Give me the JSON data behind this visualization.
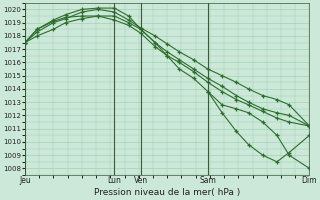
{
  "bg_color": "#cce8d8",
  "grid_color": "#99ccb0",
  "line_color": "#2d6e2d",
  "xlabel": "Pression niveau de la mer( hPa )",
  "ylim": [
    1007.5,
    1020.5
  ],
  "yticks": [
    1008,
    1009,
    1010,
    1011,
    1012,
    1013,
    1014,
    1015,
    1016,
    1017,
    1018,
    1019,
    1020
  ],
  "xlim": [
    0,
    7
  ],
  "xtick_labels": [
    "Jeu",
    "Lun",
    "Ven",
    "Sam",
    "Dim"
  ],
  "xtick_pos": [
    0,
    2.2,
    2.85,
    4.5,
    7.0
  ],
  "vlines": [
    0,
    2.2,
    2.85,
    4.5,
    7.0
  ],
  "series1_x": [
    0,
    0.3,
    0.7,
    1.0,
    1.4,
    1.8,
    2.2,
    2.55,
    2.85,
    3.2,
    3.5,
    3.8,
    4.15,
    4.5,
    4.85,
    5.2,
    5.5,
    5.85,
    6.2,
    6.5,
    7.0
  ],
  "series1": [
    1017.5,
    1018.0,
    1018.5,
    1019.0,
    1019.3,
    1019.5,
    1019.5,
    1019.0,
    1018.5,
    1017.5,
    1016.5,
    1016.0,
    1015.3,
    1014.5,
    1013.8,
    1013.2,
    1012.8,
    1012.3,
    1011.8,
    1011.5,
    1011.2
  ],
  "series2_x": [
    0,
    0.3,
    0.7,
    1.0,
    1.4,
    1.8,
    2.2,
    2.55,
    2.85,
    3.2,
    3.5,
    3.8,
    4.15,
    4.5,
    4.85,
    5.2,
    5.5,
    5.85,
    6.2,
    6.5,
    7.0
  ],
  "series2": [
    1017.5,
    1018.5,
    1019.2,
    1019.6,
    1020.0,
    1020.1,
    1020.1,
    1019.5,
    1018.5,
    1017.5,
    1016.8,
    1016.2,
    1015.5,
    1014.8,
    1014.2,
    1013.5,
    1013.0,
    1012.5,
    1012.2,
    1012.0,
    1011.2
  ],
  "series3_x": [
    0,
    0.3,
    0.7,
    1.0,
    1.4,
    1.8,
    2.2,
    2.55,
    2.85,
    3.2,
    3.5,
    3.8,
    4.15,
    4.5,
    4.85,
    5.2,
    5.5,
    5.85,
    6.2,
    6.5,
    7.0
  ],
  "series3": [
    1017.5,
    1018.3,
    1019.0,
    1019.3,
    1019.8,
    1020.0,
    1019.8,
    1019.2,
    1018.6,
    1018.0,
    1017.4,
    1016.8,
    1016.2,
    1015.5,
    1015.0,
    1014.5,
    1014.0,
    1013.5,
    1013.2,
    1012.8,
    1011.2
  ],
  "series4_x": [
    0,
    0.3,
    0.7,
    1.0,
    1.4,
    1.8,
    2.2,
    2.55,
    2.85,
    3.2,
    3.5,
    3.8,
    4.15,
    4.5,
    4.85,
    5.2,
    5.5,
    5.85,
    6.2,
    6.5,
    7.0
  ],
  "series4": [
    1017.5,
    1018.5,
    1019.1,
    1019.4,
    1019.5,
    1019.5,
    1019.2,
    1018.8,
    1018.2,
    1017.2,
    1016.5,
    1015.5,
    1014.8,
    1013.8,
    1012.8,
    1012.5,
    1012.2,
    1011.5,
    1010.5,
    1009.0,
    1008.0
  ],
  "series5_x": [
    4.5,
    4.85,
    5.2,
    5.5,
    5.85,
    6.2,
    6.5,
    7.0
  ],
  "series5": [
    1013.8,
    1012.2,
    1010.8,
    1009.8,
    1009.0,
    1008.5,
    1009.2,
    1010.5
  ]
}
